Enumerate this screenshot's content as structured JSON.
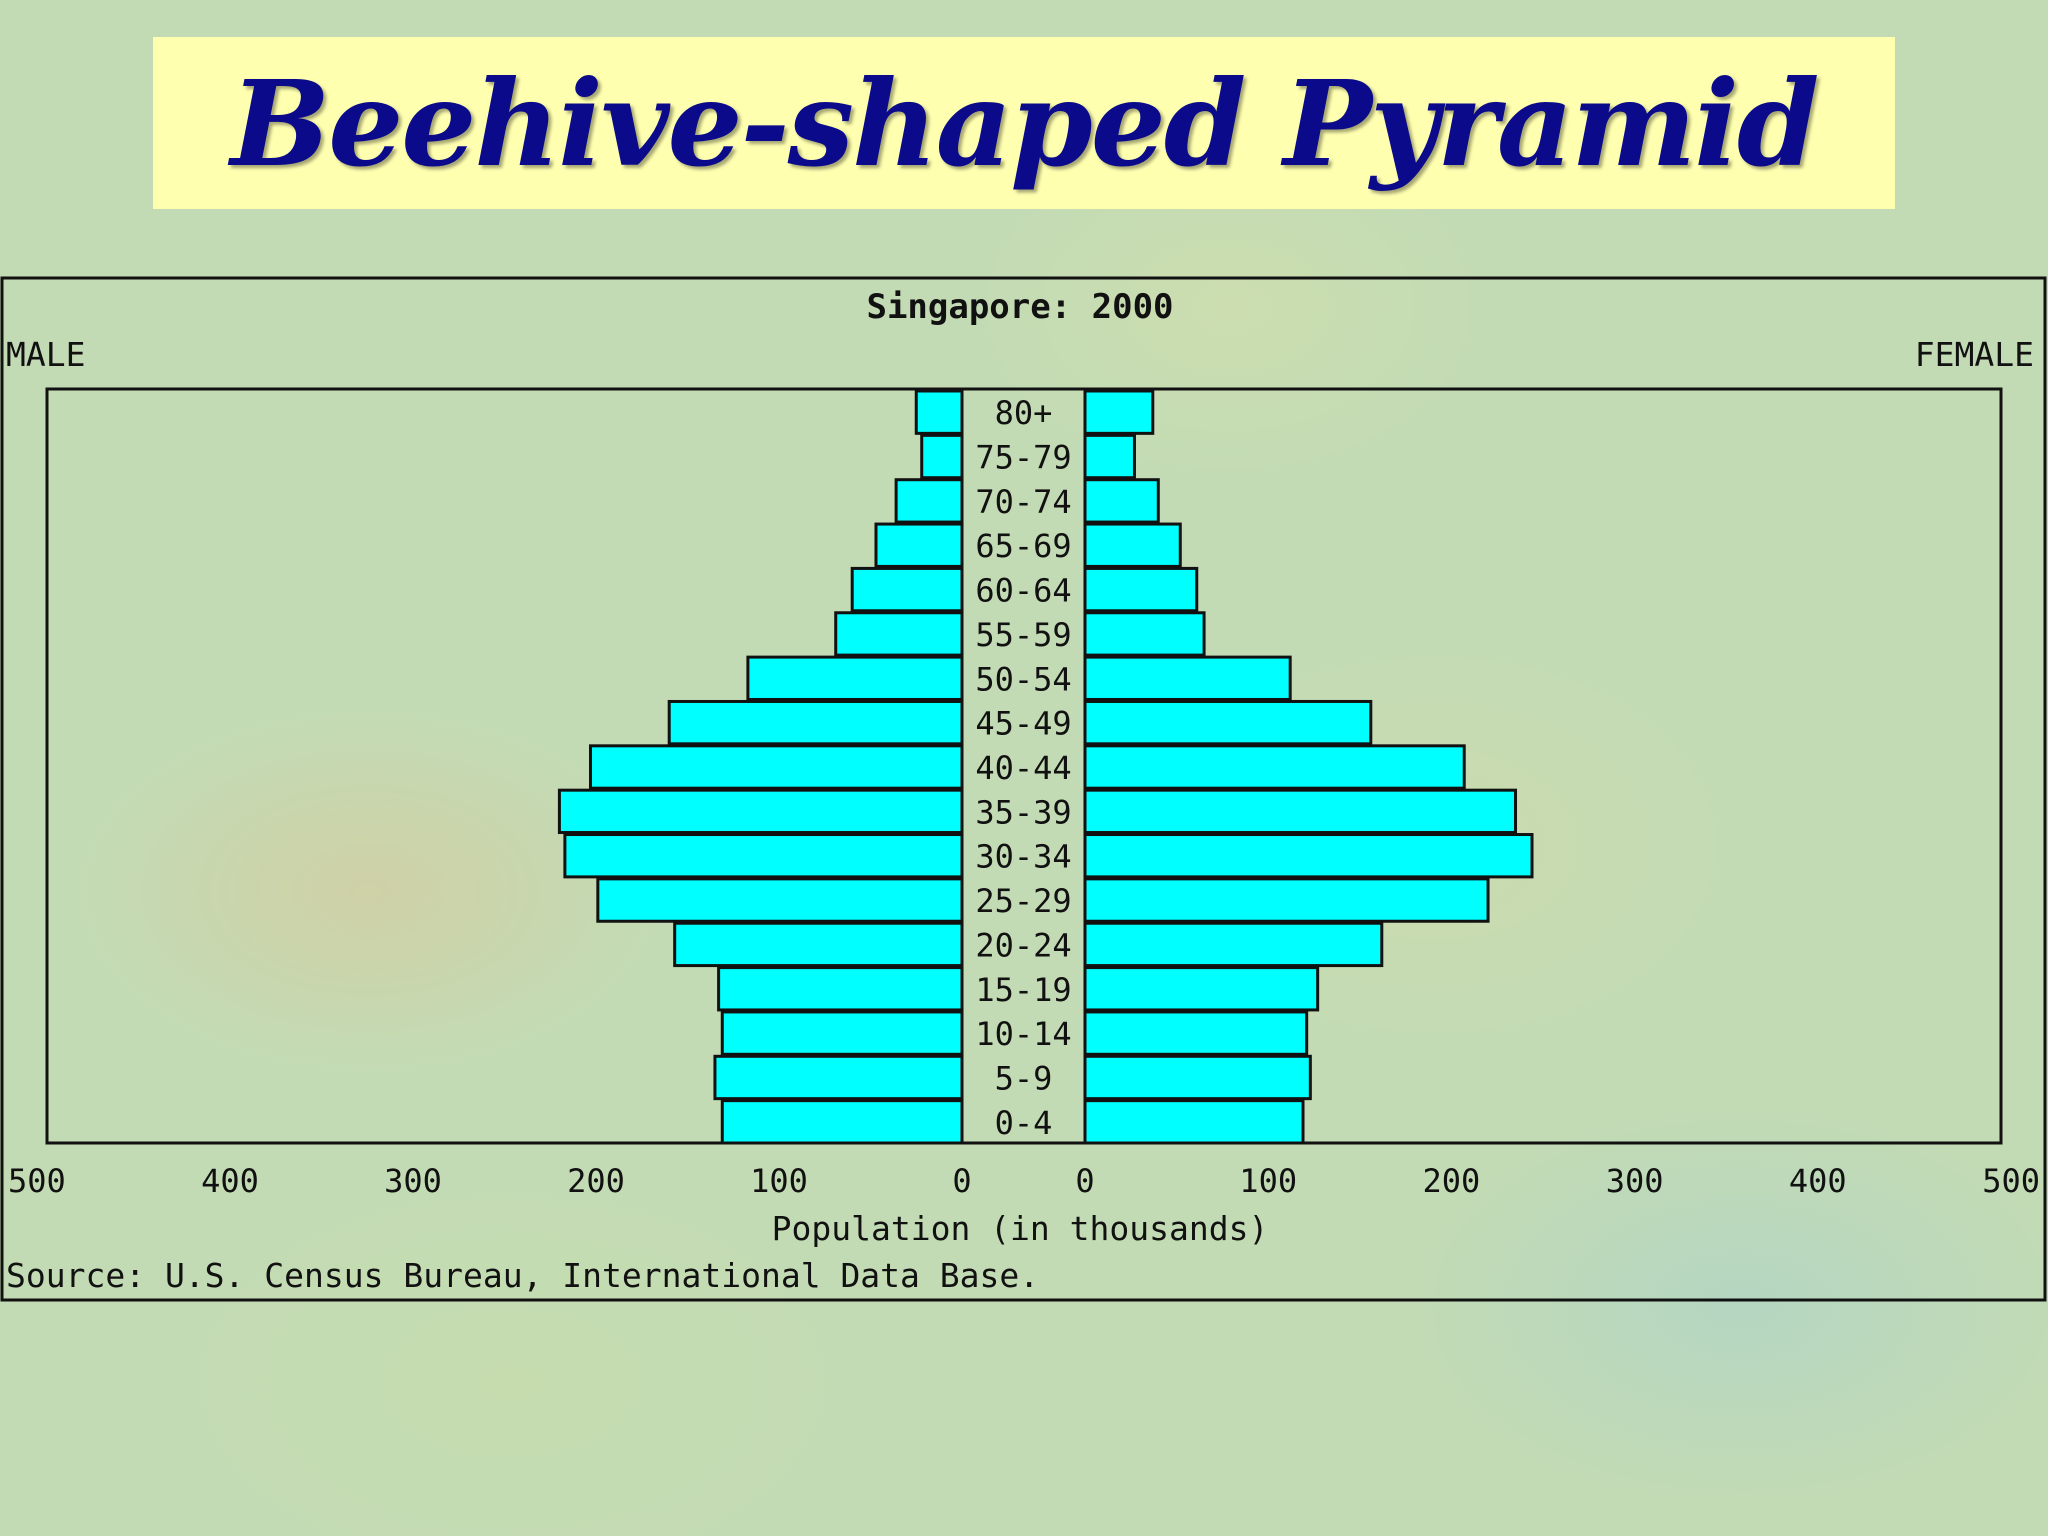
{
  "slide_title": "Beehive-shaped Pyramid",
  "chart_data": {
    "type": "bar",
    "orientation": "horizontal-population-pyramid",
    "title": "Singapore: 2000",
    "left_label": "MALE",
    "right_label": "FEMALE",
    "xlabel": "Population (in thousands)",
    "source": "Source: U.S. Census Bureau, International Data Base.",
    "xlim": [
      0,
      500
    ],
    "ticks": [
      "500",
      "400",
      "300",
      "200",
      "100",
      "0",
      "0",
      "100",
      "200",
      "300",
      "400",
      "500"
    ],
    "categories": [
      "80+",
      "75-79",
      "70-74",
      "65-69",
      "60-64",
      "55-59",
      "50-54",
      "45-49",
      "40-44",
      "35-39",
      "30-34",
      "25-29",
      "20-24",
      "15-19",
      "10-14",
      "5-9",
      "0-4"
    ],
    "series": [
      {
        "name": "MALE",
        "values": [
          25,
          22,
          36,
          47,
          60,
          69,
          117,
          160,
          203,
          220,
          217,
          199,
          157,
          133,
          131,
          135,
          131
        ]
      },
      {
        "name": "FEMALE",
        "values": [
          37,
          27,
          40,
          52,
          61,
          65,
          112,
          156,
          207,
          235,
          244,
          220,
          162,
          127,
          121,
          123,
          119
        ]
      }
    ],
    "bar_color": "#00ffff",
    "grid": false
  }
}
